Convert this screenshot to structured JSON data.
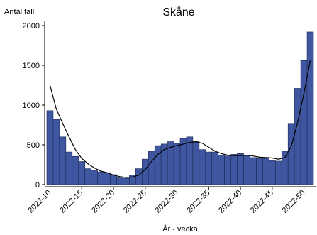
{
  "chart_data": {
    "type": "bar",
    "title": "Skåne",
    "xlabel": "År - vecka",
    "ylabel": "Antal fall",
    "ylim": [
      0,
      2000
    ],
    "yticks": [
      0,
      500,
      1000,
      1500,
      2000
    ],
    "xtick_labels": [
      "2022-10",
      "2022-15",
      "2022-20",
      "2022-25",
      "2022-30",
      "2022-35",
      "2022-40",
      "2022-45",
      "2022-50"
    ],
    "categories": [
      "2022-10",
      "2022-11",
      "2022-12",
      "2022-13",
      "2022-14",
      "2022-15",
      "2022-16",
      "2022-17",
      "2022-18",
      "2022-19",
      "2022-20",
      "2022-21",
      "2022-22",
      "2022-23",
      "2022-24",
      "2022-25",
      "2022-26",
      "2022-27",
      "2022-28",
      "2022-29",
      "2022-30",
      "2022-31",
      "2022-32",
      "2022-33",
      "2022-34",
      "2022-35",
      "2022-36",
      "2022-37",
      "2022-38",
      "2022-39",
      "2022-40",
      "2022-41",
      "2022-42",
      "2022-43",
      "2022-44",
      "2022-45",
      "2022-46",
      "2022-47",
      "2022-48",
      "2022-49",
      "2022-50",
      "2022-51"
    ],
    "series": [
      {
        "type": "bar",
        "values": [
          930,
          820,
          600,
          410,
          355,
          290,
          200,
          180,
          160,
          150,
          125,
          85,
          80,
          120,
          200,
          320,
          420,
          490,
          510,
          540,
          520,
          580,
          600,
          540,
          440,
          410,
          410,
          370,
          360,
          380,
          390,
          370,
          340,
          330,
          330,
          300,
          295,
          420,
          770,
          1210,
          1560,
          1920
        ],
        "color": "#3f56a0"
      },
      {
        "type": "line",
        "values": [
          1250,
          950,
          770,
          600,
          440,
          330,
          260,
          210,
          170,
          150,
          120,
          100,
          90,
          95,
          120,
          190,
          290,
          380,
          440,
          470,
          490,
          510,
          530,
          540,
          520,
          470,
          420,
          390,
          370,
          365,
          365,
          370,
          360,
          345,
          340,
          335,
          320,
          340,
          480,
          780,
          1150,
          1560
        ],
        "color": "#000000"
      }
    ],
    "grid": false
  }
}
